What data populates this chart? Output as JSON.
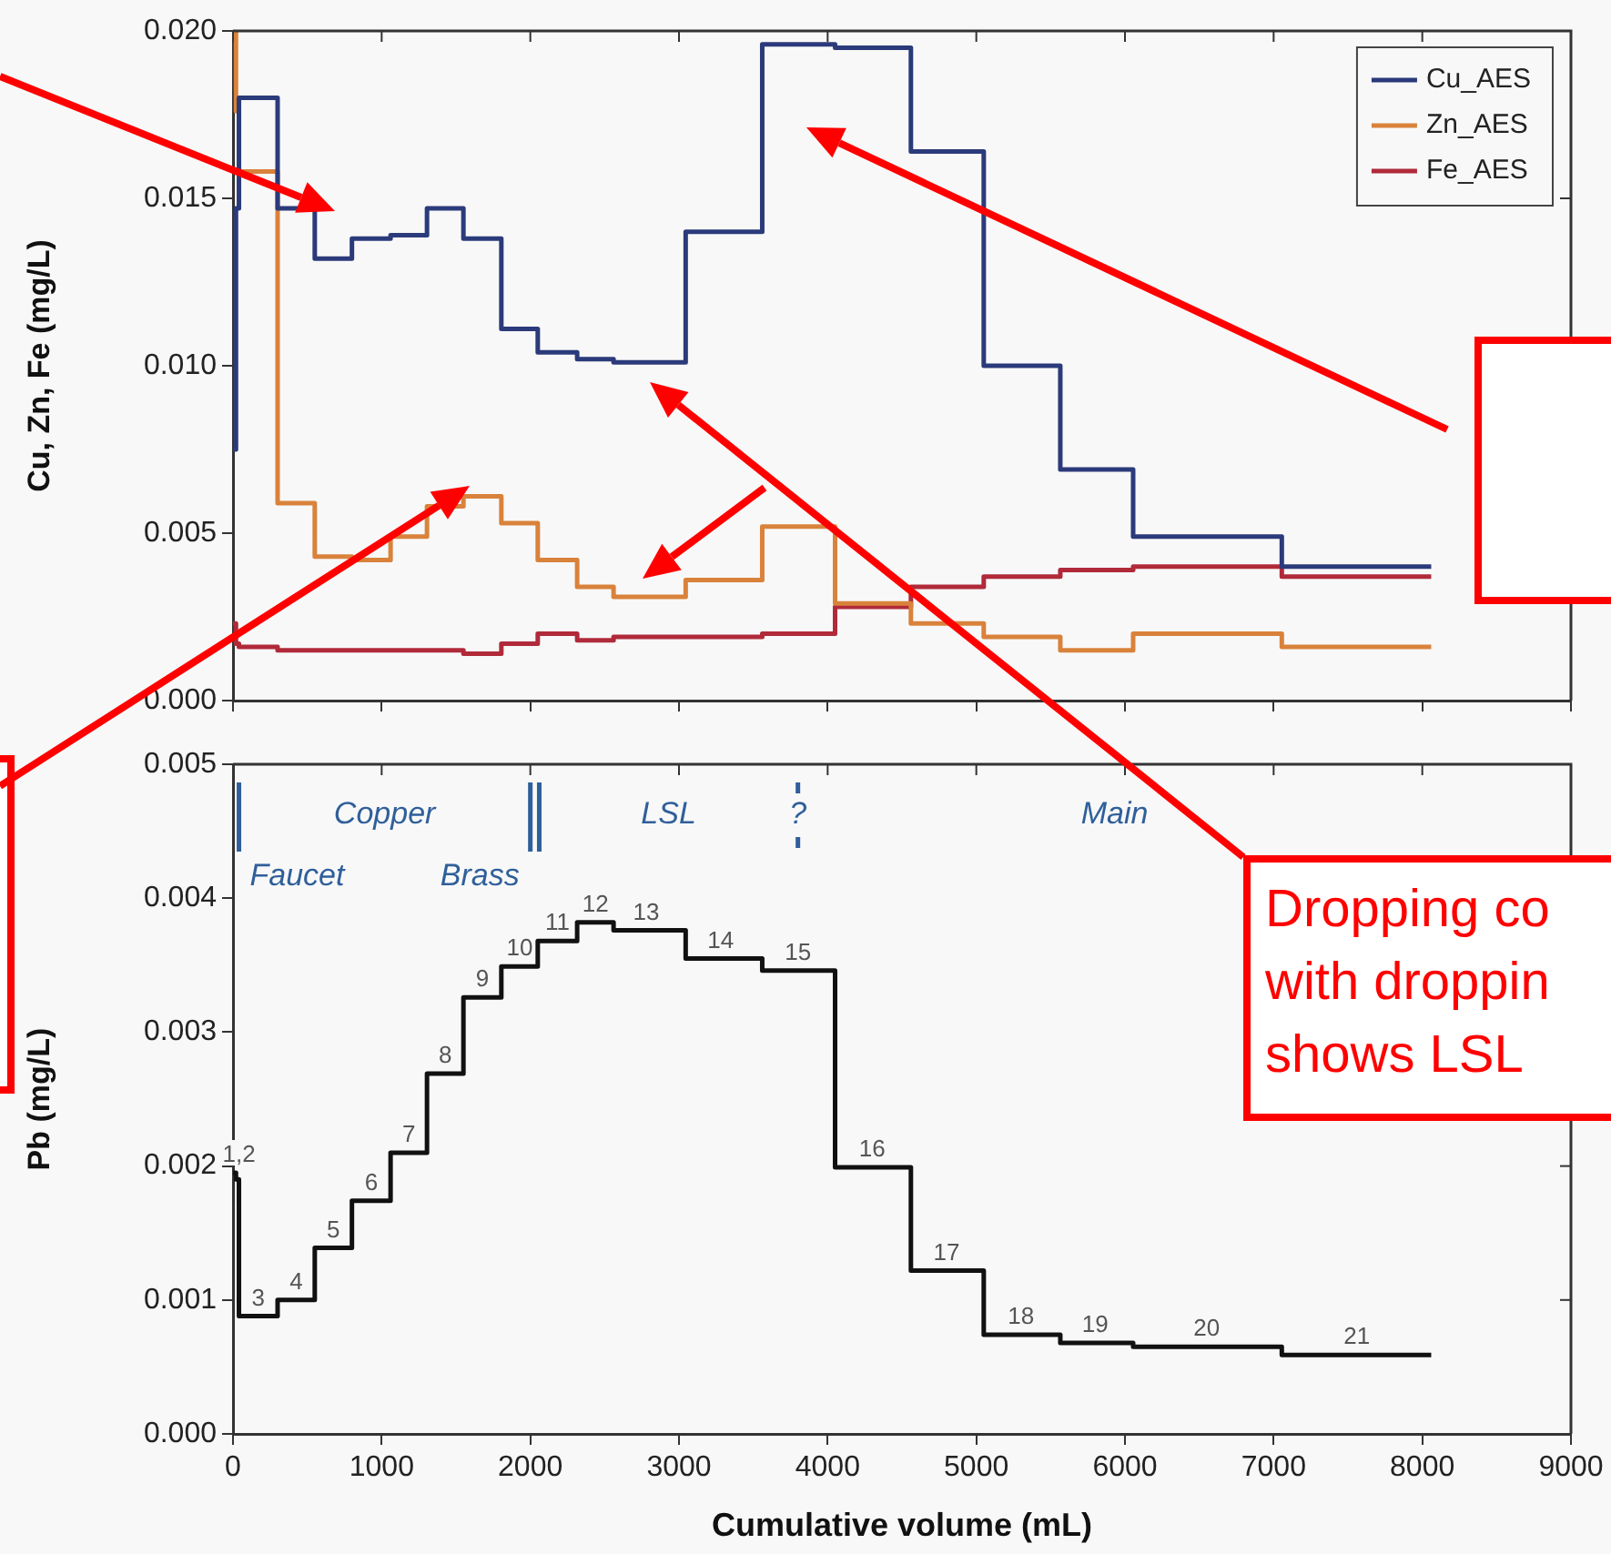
{
  "chart_data": [
    {
      "type": "step",
      "ylabel": "Cu, Zn, Fe (mg/L)",
      "x": [
        0,
        20,
        40,
        300,
        550,
        800,
        1060,
        1305,
        1550,
        1805,
        2050,
        2315,
        2560,
        3045,
        3560,
        4050,
        4560,
        5050,
        5565,
        6055,
        7055,
        8060
      ],
      "series": [
        {
          "name": "Cu_AES",
          "color": "#2b3a7a",
          "values": [
            0.0075,
            0.0147,
            0.018,
            0.0147,
            0.0132,
            0.0138,
            0.0139,
            0.0147,
            0.0138,
            0.0111,
            0.0104,
            0.0102,
            0.0101,
            0.014,
            0.0196,
            0.0195,
            0.0164,
            0.01,
            0.0069,
            0.0049,
            0.004,
            0.004
          ]
        },
        {
          "name": "Zn_AES",
          "color": "#d9823b",
          "values": [
            0.02,
            0.0176,
            0.0158,
            0.0059,
            0.0043,
            0.0042,
            0.0049,
            0.0058,
            0.0061,
            0.0053,
            0.0042,
            0.0034,
            0.0031,
            0.0036,
            0.0052,
            0.0029,
            0.0023,
            0.0019,
            0.0015,
            0.002,
            0.0016,
            0.0016
          ]
        },
        {
          "name": "Fe_AES",
          "color": "#b02a3a",
          "values": [
            0.0023,
            0.0017,
            0.0016,
            0.0015,
            0.0015,
            0.0015,
            0.0015,
            0.0015,
            0.0014,
            0.0017,
            0.002,
            0.0018,
            0.0019,
            0.0019,
            0.002,
            0.0028,
            0.0034,
            0.0037,
            0.0039,
            0.004,
            0.0037,
            0.0037
          ]
        }
      ],
      "xlim": [
        0,
        9000
      ],
      "xticks": [
        0,
        1000,
        2000,
        3000,
        4000,
        5000,
        6000,
        7000,
        8000,
        9000
      ],
      "ylim": [
        0,
        0.02
      ],
      "yticks": [
        {
          "value": 0,
          "label": "0.000"
        },
        0.005,
        {
          "value": 0.01,
          "label": "0.010"
        },
        0.015,
        {
          "value": 0.02,
          "label": "0.020"
        }
      ],
      "tick_labels": "y",
      "legend": "top right",
      "marker": "none",
      "grid": false,
      "annotations": [
        "Dropping co",
        "with droppin",
        "shows LSL"
      ]
    },
    {
      "type": "step",
      "xlabel": "Cumulative volume (mL)",
      "ylabel": "Pb (mg/L)",
      "x": [
        0,
        20,
        40,
        300,
        550,
        800,
        1060,
        1305,
        1550,
        1805,
        2050,
        2315,
        2560,
        3045,
        3560,
        4050,
        4560,
        5050,
        5565,
        6055,
        7055,
        8060
      ],
      "series": [
        {
          "color": "#111111",
          "values": [
            0.00195,
            0.0019,
            0.00088,
            0.001,
            0.00139,
            0.00174,
            0.0021,
            0.00269,
            0.00326,
            0.00349,
            0.00368,
            0.00382,
            0.00376,
            0.00355,
            0.00346,
            0.00199,
            0.00122,
            0.00074,
            0.00068,
            0.00065,
            0.00059,
            0.00059
          ]
        }
      ],
      "xlim": [
        0,
        9000
      ],
      "xticks": [
        0,
        1000,
        2000,
        3000,
        4000,
        5000,
        6000,
        7000,
        8000,
        9000
      ],
      "ylim": [
        0,
        0.005
      ],
      "yticks": [
        {
          "value": 0,
          "label": "0.000"
        },
        0.001,
        0.002,
        0.003,
        0.004,
        0.005
      ],
      "marker": "none",
      "grid": false,
      "ref_lines": [
        {
          "axis": "x",
          "value": 40,
          "label": "Faucet",
          "color": "#2f5f9a"
        },
        {
          "axis": "x",
          "value": 2000,
          "label": "Brass",
          "color": "#2f5f9a"
        },
        {
          "axis": "x",
          "value": 2060,
          "color": "#2f5f9a"
        },
        {
          "axis": "x",
          "value": 3800,
          "label": "?",
          "color": "#2f5f9a",
          "line_style": "dashed"
        }
      ],
      "annotations": [
        "Copper",
        "LSL",
        "Main",
        {
          "text": "1,2",
          "x": 40,
          "y": 0.00195
        },
        {
          "text": "3",
          "x": 170,
          "y": 0.00088
        },
        {
          "text": "4",
          "x": 425,
          "y": 0.001
        },
        {
          "text": "5",
          "x": 675,
          "y": 0.00139
        },
        {
          "text": "6",
          "x": 930,
          "y": 0.00174
        },
        {
          "text": "7",
          "x": 1183,
          "y": 0.0021
        },
        {
          "text": "8",
          "x": 1428,
          "y": 0.00269
        },
        {
          "text": "9",
          "x": 1678,
          "y": 0.00326
        },
        {
          "text": "10",
          "x": 1928,
          "y": 0.00349
        },
        {
          "text": "11",
          "x": 2183,
          "y": 0.00368
        },
        {
          "text": "12",
          "x": 2438,
          "y": 0.00382
        },
        {
          "text": "13",
          "x": 2780,
          "y": 0.00376
        },
        {
          "text": "14",
          "x": 3280,
          "y": 0.00355
        },
        {
          "text": "15",
          "x": 3800,
          "y": 0.00346
        },
        {
          "text": "16",
          "x": 4300,
          "y": 0.00199
        },
        {
          "text": "17",
          "x": 4800,
          "y": 0.00122
        },
        {
          "text": "18",
          "x": 5300,
          "y": 0.00074
        },
        {
          "text": "19",
          "x": 5800,
          "y": 0.00068
        },
        {
          "text": "20",
          "x": 6550,
          "y": 0.00065
        },
        {
          "text": "21",
          "x": 7560,
          "y": 0.00059
        }
      ]
    }
  ]
}
